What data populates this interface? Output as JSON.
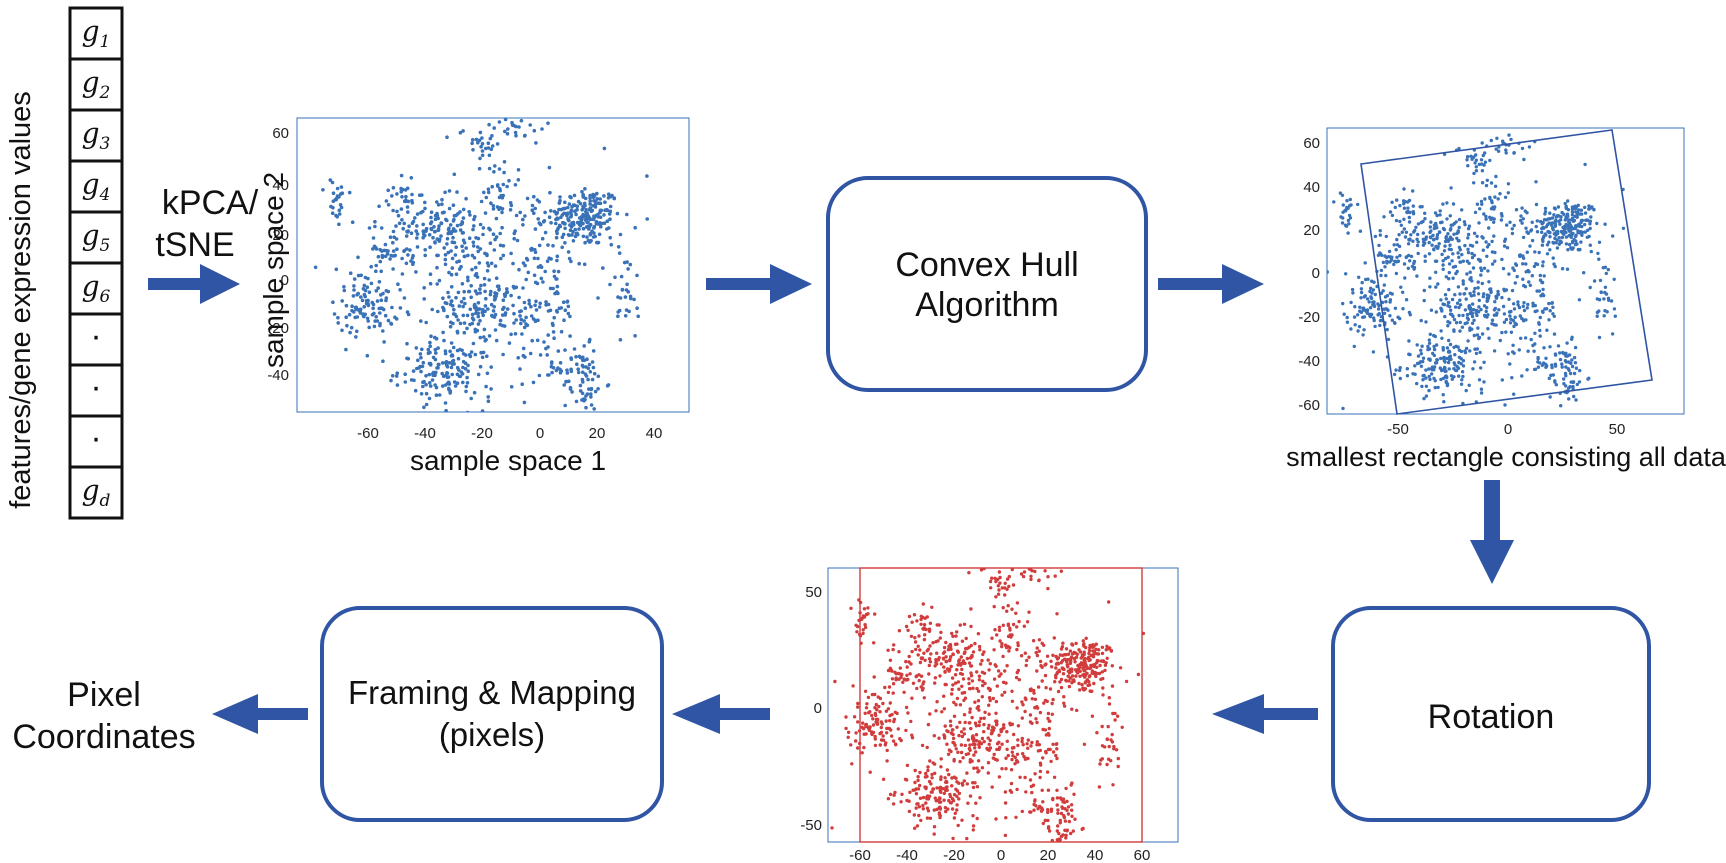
{
  "feature_vector": {
    "label": "features/gene expression values",
    "items": [
      "g",
      "g",
      "g",
      "g",
      "g",
      "g",
      "·",
      "·",
      "·",
      "g"
    ],
    "subscripts": [
      "1",
      "2",
      "3",
      "4",
      "5",
      "6",
      "",
      "",
      "",
      "d"
    ]
  },
  "arrow_label": [
    "kPCA/",
    "tSNE"
  ],
  "plot1": {
    "xlabel": "sample space 1",
    "ylabel": "sample space 2",
    "xticks": [
      "-60",
      "-40",
      "-20",
      "0",
      "20",
      "40",
      "60"
    ],
    "yticks": [
      "60",
      "40",
      "20",
      "0",
      "-20",
      "-40"
    ]
  },
  "convex_hull_box": [
    "Convex Hull",
    "Algorithm"
  ],
  "plot2": {
    "caption": "smallest rectangle consisting all data",
    "xticks": [
      "-50",
      "0",
      "50"
    ],
    "yticks": [
      "60",
      "40",
      "20",
      "0",
      "-20",
      "-40",
      "-60"
    ]
  },
  "rotation_box": "Rotation",
  "plot3": {
    "xticks": [
      "-60",
      "-40",
      "-20",
      "0",
      "20",
      "40",
      "60"
    ],
    "yticks": [
      "50",
      "0",
      "-50"
    ]
  },
  "framing_box": [
    "Framing & Mapping",
    "(pixels)"
  ],
  "output_label": [
    "Pixel",
    "Coordinates"
  ],
  "colors": {
    "scatter_blue": "#3a72b8",
    "scatter_red": "#d13c3c",
    "flow_blue": "#2f55a4",
    "box_border": "#2f55a4"
  }
}
